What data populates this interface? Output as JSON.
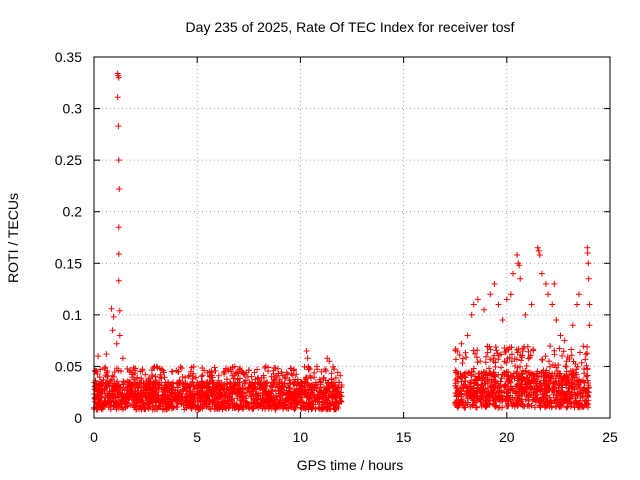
{
  "chart_data": {
    "type": "scatter",
    "title": "Day 235 of 2025, Rate Of TEC Index for receiver tosf",
    "xlabel": "GPS time / hours",
    "ylabel": "ROTI / TECUs",
    "xlim": [
      0,
      25
    ],
    "ylim": [
      0,
      0.35
    ],
    "xticks": [
      0,
      5,
      10,
      15,
      20,
      25
    ],
    "xtick_labels": [
      "0",
      "5",
      "10",
      "15",
      "20",
      "25"
    ],
    "yticks": [
      0,
      0.05,
      0.1,
      0.15,
      0.2,
      0.25,
      0.3,
      0.35
    ],
    "ytick_labels": [
      "0",
      "0.05",
      "0.1",
      "0.15",
      "0.2",
      "0.25",
      "0.3",
      "0.35"
    ],
    "grid": true,
    "marker": "+",
    "colors": {
      "series": "#ff0000",
      "grid": "#a0a0a0",
      "axes": "#000000"
    },
    "series": [
      {
        "name": "ROTI",
        "segments": [
          {
            "x_range": [
              0.0,
              12.0
            ],
            "y_base": [
              0.008,
              0.035
            ],
            "y_typical_max": 0.05
          },
          {
            "x_range": [
              17.5,
              24.0
            ],
            "y_base": [
              0.01,
              0.045
            ],
            "y_typical_max": 0.07
          }
        ],
        "points": [
          {
            "x": 1.15,
            "y": 0.334
          },
          {
            "x": 1.17,
            "y": 0.332
          },
          {
            "x": 1.2,
            "y": 0.33
          },
          {
            "x": 1.15,
            "y": 0.311
          },
          {
            "x": 1.18,
            "y": 0.283
          },
          {
            "x": 1.2,
            "y": 0.25
          },
          {
            "x": 1.22,
            "y": 0.222
          },
          {
            "x": 1.2,
            "y": 0.185
          },
          {
            "x": 1.2,
            "y": 0.159
          },
          {
            "x": 1.2,
            "y": 0.133
          },
          {
            "x": 0.85,
            "y": 0.106
          },
          {
            "x": 0.95,
            "y": 0.098
          },
          {
            "x": 1.25,
            "y": 0.104
          },
          {
            "x": 0.9,
            "y": 0.085
          },
          {
            "x": 1.25,
            "y": 0.08
          },
          {
            "x": 1.1,
            "y": 0.072
          },
          {
            "x": 0.2,
            "y": 0.06
          },
          {
            "x": 0.6,
            "y": 0.062
          },
          {
            "x": 1.4,
            "y": 0.058
          },
          {
            "x": 2.0,
            "y": 0.048
          },
          {
            "x": 3.2,
            "y": 0.048
          },
          {
            "x": 4.1,
            "y": 0.045
          },
          {
            "x": 5.6,
            "y": 0.045
          },
          {
            "x": 7.0,
            "y": 0.043
          },
          {
            "x": 7.9,
            "y": 0.047
          },
          {
            "x": 8.6,
            "y": 0.04
          },
          {
            "x": 10.3,
            "y": 0.065
          },
          {
            "x": 10.35,
            "y": 0.058
          },
          {
            "x": 10.8,
            "y": 0.05
          },
          {
            "x": 11.3,
            "y": 0.058
          },
          {
            "x": 11.4,
            "y": 0.055
          },
          {
            "x": 17.6,
            "y": 0.065
          },
          {
            "x": 17.8,
            "y": 0.072
          },
          {
            "x": 18.1,
            "y": 0.08
          },
          {
            "x": 18.3,
            "y": 0.1
          },
          {
            "x": 18.4,
            "y": 0.11
          },
          {
            "x": 18.6,
            "y": 0.115
          },
          {
            "x": 18.9,
            "y": 0.105
          },
          {
            "x": 19.2,
            "y": 0.12
          },
          {
            "x": 19.4,
            "y": 0.13
          },
          {
            "x": 19.6,
            "y": 0.11
          },
          {
            "x": 19.8,
            "y": 0.095
          },
          {
            "x": 20.0,
            "y": 0.115
          },
          {
            "x": 20.2,
            "y": 0.12
          },
          {
            "x": 20.3,
            "y": 0.14
          },
          {
            "x": 20.5,
            "y": 0.158
          },
          {
            "x": 20.55,
            "y": 0.15
          },
          {
            "x": 20.6,
            "y": 0.148
          },
          {
            "x": 20.65,
            "y": 0.135
          },
          {
            "x": 20.9,
            "y": 0.1
          },
          {
            "x": 21.2,
            "y": 0.11
          },
          {
            "x": 21.5,
            "y": 0.165
          },
          {
            "x": 21.55,
            "y": 0.162
          },
          {
            "x": 21.6,
            "y": 0.158
          },
          {
            "x": 21.7,
            "y": 0.14
          },
          {
            "x": 21.9,
            "y": 0.13
          },
          {
            "x": 22.0,
            "y": 0.12
          },
          {
            "x": 22.2,
            "y": 0.11
          },
          {
            "x": 22.3,
            "y": 0.13
          },
          {
            "x": 22.4,
            "y": 0.095
          },
          {
            "x": 22.6,
            "y": 0.08
          },
          {
            "x": 22.8,
            "y": 0.075
          },
          {
            "x": 23.2,
            "y": 0.09
          },
          {
            "x": 23.4,
            "y": 0.11
          },
          {
            "x": 23.5,
            "y": 0.12
          },
          {
            "x": 23.9,
            "y": 0.165
          },
          {
            "x": 23.92,
            "y": 0.16
          },
          {
            "x": 23.95,
            "y": 0.15
          },
          {
            "x": 23.97,
            "y": 0.135
          },
          {
            "x": 24.0,
            "y": 0.11
          },
          {
            "x": 24.0,
            "y": 0.09
          }
        ]
      }
    ]
  }
}
